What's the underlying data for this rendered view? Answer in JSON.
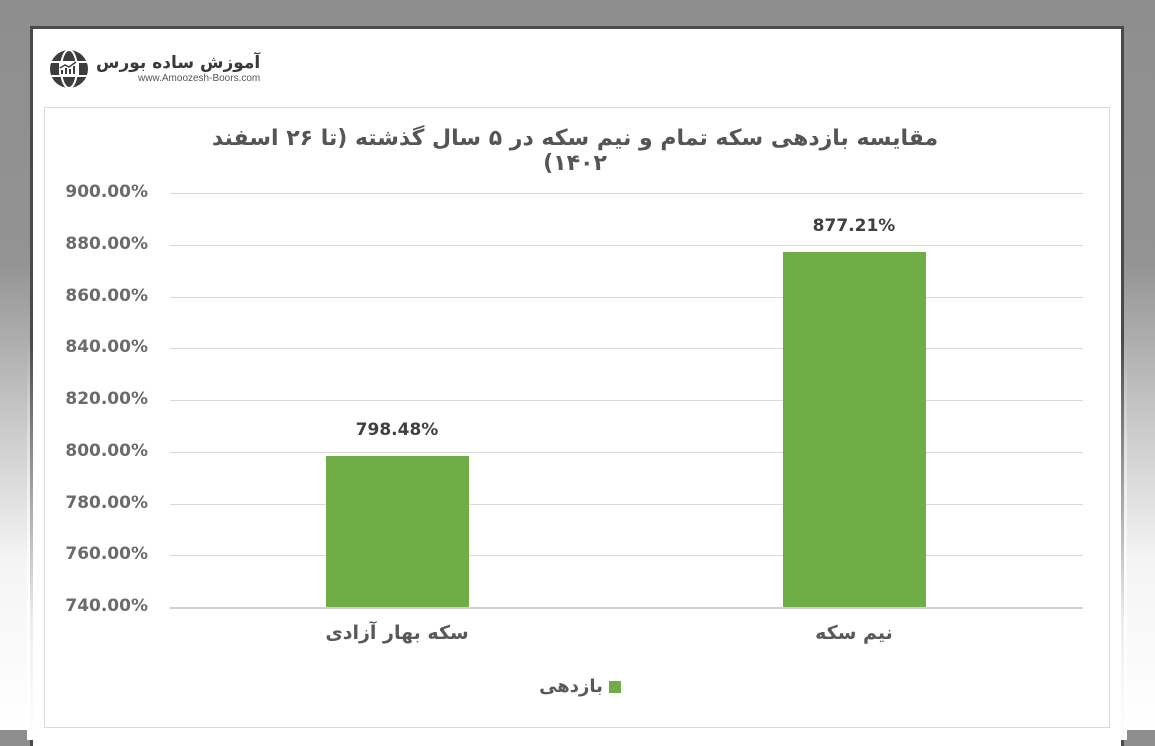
{
  "logo": {
    "name_fa": "آموزش ساده بورس",
    "url": "www.Amoozesh-Boors.com",
    "icon": "globe-chart-icon"
  },
  "colors": {
    "bar": "#70ad47",
    "grid": "#d9d9d9",
    "text": "#595959"
  },
  "chart_data": {
    "type": "bar",
    "title": "مقایسه بازدهی سکه تمام و نیم سکه در ۵ سال گذشته (تا ۲۶ اسفند ۱۴۰۲)",
    "categories": [
      "سکه بهار آزادی",
      "نیم سکه"
    ],
    "series": [
      {
        "name": "بازدهی",
        "values": [
          798.48,
          877.21
        ],
        "color": "#70ad47"
      }
    ],
    "data_labels": [
      "798.48%",
      "877.21%"
    ],
    "xlabel": "",
    "ylabel": "",
    "ylim": [
      740,
      900
    ],
    "yticks": [
      "900.00%",
      "880.00%",
      "860.00%",
      "840.00%",
      "820.00%",
      "800.00%",
      "780.00%",
      "760.00%",
      "740.00%"
    ],
    "ytick_values": [
      900,
      880,
      860,
      840,
      820,
      800,
      780,
      760,
      740
    ],
    "grid": true,
    "legend_position": "bottom"
  }
}
